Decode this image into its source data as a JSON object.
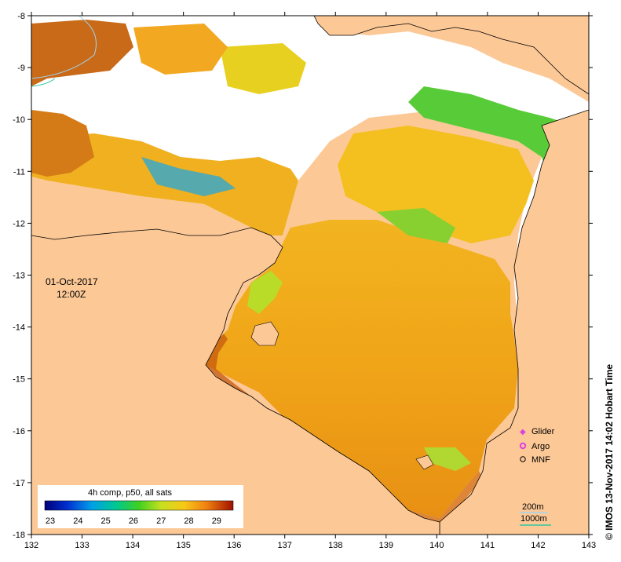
{
  "map": {
    "date": "01-Oct-2017",
    "time": "12:00Z",
    "lon_ticks": [
      "132",
      "133",
      "134",
      "135",
      "136",
      "137",
      "138",
      "139",
      "140",
      "141",
      "142",
      "143"
    ],
    "lat_ticks": [
      "-8",
      "-9",
      "-10",
      "-11",
      "-12",
      "-13",
      "-14",
      "-15",
      "-16",
      "-17",
      "-18"
    ],
    "lon_range": [
      132,
      143
    ],
    "lat_range": [
      -18,
      -8
    ],
    "colorbar": {
      "title": "4h comp, p50, all sats",
      "labels": [
        "23",
        "24",
        "25",
        "26",
        "27",
        "28",
        "29"
      ],
      "range": [
        22.8,
        29.6
      ]
    },
    "legend": {
      "glider": "Glider",
      "argo": "Argo",
      "mnf": "MNF"
    },
    "depth_contours": {
      "shallow": "200m",
      "deep": "1000m"
    },
    "credit": "© IMOS 13-Nov-2017 14:02 Hobart Time"
  },
  "colors": {
    "land": "#fcc896",
    "no_data": "#ffffff",
    "glider": "#e040e0",
    "argo": "#e040e0",
    "contour_200": "#a0d4f0",
    "contour_1000": "#30c8a0"
  }
}
